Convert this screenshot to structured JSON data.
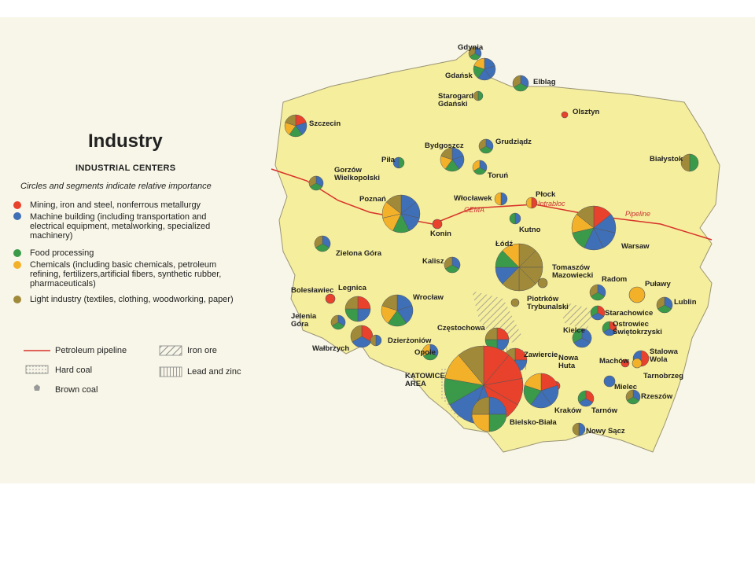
{
  "header": {
    "title": "Industry",
    "subtitle": "INDUSTRIAL CENTERS",
    "note": "Circles and segments indicate relative importance"
  },
  "legend": {
    "categories": [
      "Mining, iron and steel, nonferrous metallurgy",
      "Machine building (including transportation and electrical equipment, metalworking, specialized machinery)",
      "Food processing",
      "Chemicals (including basic chemicals, petroleum refining, fertilizers,artificial fibers, synthetic rubber, pharmaceuticals)",
      "Light industry (textiles, clothing, woodworking, paper)"
    ],
    "symbols": [
      "Petroleum pipeline",
      "Hard coal",
      "Brown coal",
      "Iron ore",
      "Lead and zinc"
    ]
  },
  "map": {
    "cities": [
      "Gdynia",
      "Gdańsk",
      "Elbląg",
      "Starogard Gdański",
      "Olsztyn",
      "Szczecin",
      "Grudziądz",
      "Bydgoszcz",
      "Piła",
      "Toruń",
      "Białystok",
      "Gorzów Wielkopolski",
      "Włocławek",
      "Poznań",
      "Płock",
      "Konin",
      "Kutno",
      "Warsaw",
      "Łódź",
      "Kalisz",
      "Zielona Góra",
      "Tomaszów Mazowiecki",
      "Radom",
      "Puławy",
      "Bolesławiec",
      "Legnica",
      "Wrocław",
      "Lublin",
      "Piotrków Trybunalski",
      "Jelenia Góra",
      "Starachowice",
      "Częstochowa",
      "Kielce",
      "Ostrowiec Świętokrzyski",
      "Wałbrzych",
      "Dzierżoniów",
      "Stalowa Wola",
      "Opole",
      "Zawiercie",
      "Machów",
      "Tarnobrzeg",
      "KATOWICE AREA",
      "Nowa Huta",
      "Mielec",
      "Kraków",
      "Rzeszów",
      "Tarnów",
      "Bielsko-Biała",
      "Nowy Sącz"
    ],
    "pipeline_labels": [
      "CEMA",
      "Intrabloc",
      "Pipeline"
    ]
  }
}
